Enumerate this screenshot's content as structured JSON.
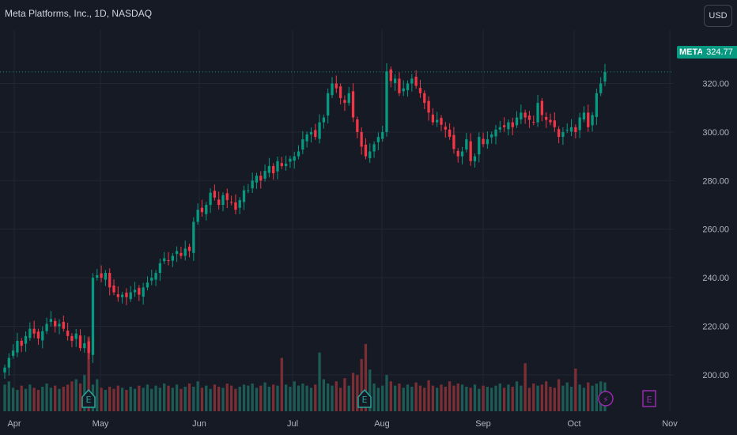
{
  "header": {
    "title": "Meta Platforms, Inc., 1D, NASDAQ",
    "currency_button": "USD"
  },
  "last_price": {
    "symbol": "META",
    "value": "324.77",
    "numeric": 324.77,
    "color": "#089981"
  },
  "events": [
    {
      "type": "earnings",
      "label": "E",
      "month": "May",
      "status": "past"
    },
    {
      "type": "earnings",
      "label": "E",
      "month": "Aug",
      "status": "past"
    },
    {
      "type": "dividend-lightning",
      "label": "⚡",
      "month": "Oct",
      "status": "upcoming"
    },
    {
      "type": "earnings",
      "label": "E",
      "month": "Oct",
      "status": "upcoming"
    }
  ],
  "colors": {
    "background": "#161a25",
    "up": "#089981",
    "down": "#f23645",
    "volume_up": "#1d5c55",
    "volume_down": "#7b2f35",
    "grid": "#232632",
    "text": "#b2b5be",
    "event_past": "#26a69a",
    "event_future": "#9c27b0"
  },
  "chart_data": {
    "type": "candlestick",
    "title": "Meta Platforms, Inc., 1D, NASDAQ",
    "ylim": [
      185,
      342
    ],
    "y_ticks": [
      200,
      220,
      240,
      260,
      280,
      300,
      320
    ],
    "y_tick_labels": [
      "200.00",
      "220.00",
      "240.00",
      "260.00",
      "280.00",
      "300.00",
      "320.00"
    ],
    "x_ticks": [
      "Apr",
      "May",
      "Jun",
      "Jul",
      "Aug",
      "Sep",
      "Oct",
      "Nov"
    ],
    "grid": true,
    "price_axis": "right",
    "closes": [
      203,
      207,
      210,
      214,
      212,
      216,
      219,
      217,
      215,
      218,
      221,
      223,
      220,
      221,
      219,
      216,
      214,
      217,
      211,
      213,
      209,
      240,
      241,
      240,
      242,
      236,
      234,
      232,
      233,
      232,
      234,
      235,
      233,
      236,
      238,
      240,
      242,
      246,
      248,
      247,
      249,
      251,
      249,
      252,
      251,
      263,
      268,
      267,
      270,
      275,
      273,
      270,
      274,
      272,
      271,
      268,
      272,
      276,
      276,
      280,
      282,
      280,
      284,
      286,
      283,
      288,
      286,
      287,
      289,
      290,
      292,
      297,
      299,
      300,
      298,
      304,
      306,
      316,
      320,
      318,
      314,
      312,
      316,
      306,
      300,
      294,
      290,
      292,
      295,
      298,
      300,
      325,
      321,
      322,
      316,
      318,
      320,
      322,
      319,
      316,
      312,
      308,
      304,
      305,
      303,
      301,
      298,
      293,
      290,
      292,
      297,
      288,
      290,
      298,
      295,
      297,
      299,
      301,
      302,
      302,
      304,
      302,
      306,
      308,
      306,
      305,
      304,
      312,
      307,
      305,
      304,
      302,
      298,
      300,
      301,
      302,
      300,
      306,
      308,
      302,
      307,
      316,
      320,
      324.77
    ],
    "volume": [
      0.25,
      0.28,
      0.22,
      0.2,
      0.24,
      0.21,
      0.25,
      0.22,
      0.2,
      0.23,
      0.26,
      0.22,
      0.24,
      0.21,
      0.23,
      0.25,
      0.28,
      0.3,
      0.26,
      0.34,
      0.7,
      0.25,
      0.3,
      0.22,
      0.2,
      0.23,
      0.21,
      0.24,
      0.22,
      0.2,
      0.23,
      0.21,
      0.24,
      0.22,
      0.25,
      0.21,
      0.24,
      0.22,
      0.26,
      0.24,
      0.22,
      0.25,
      0.21,
      0.23,
      0.26,
      0.23,
      0.28,
      0.22,
      0.24,
      0.21,
      0.25,
      0.23,
      0.22,
      0.26,
      0.24,
      0.21,
      0.23,
      0.25,
      0.24,
      0.26,
      0.22,
      0.24,
      0.27,
      0.23,
      0.25,
      0.24,
      0.5,
      0.25,
      0.23,
      0.28,
      0.24,
      0.26,
      0.24,
      0.22,
      0.25,
      0.55,
      0.3,
      0.26,
      0.24,
      0.28,
      0.22,
      0.31,
      0.24,
      0.36,
      0.34,
      0.49,
      0.63,
      0.39,
      0.26,
      0.22,
      0.24,
      0.34,
      0.28,
      0.24,
      0.26,
      0.22,
      0.25,
      0.23,
      0.27,
      0.24,
      0.22,
      0.29,
      0.24,
      0.22,
      0.25,
      0.23,
      0.28,
      0.24,
      0.26,
      0.25,
      0.23,
      0.22,
      0.25,
      0.21,
      0.24,
      0.23,
      0.22,
      0.24,
      0.26,
      0.22,
      0.25,
      0.23,
      0.28,
      0.24,
      0.45,
      0.22,
      0.26,
      0.24,
      0.25,
      0.28,
      0.23,
      0.22,
      0.3,
      0.24,
      0.27,
      0.23,
      0.4,
      0.25,
      0.22,
      0.27,
      0.24,
      0.26,
      0.28,
      0.27
    ]
  }
}
